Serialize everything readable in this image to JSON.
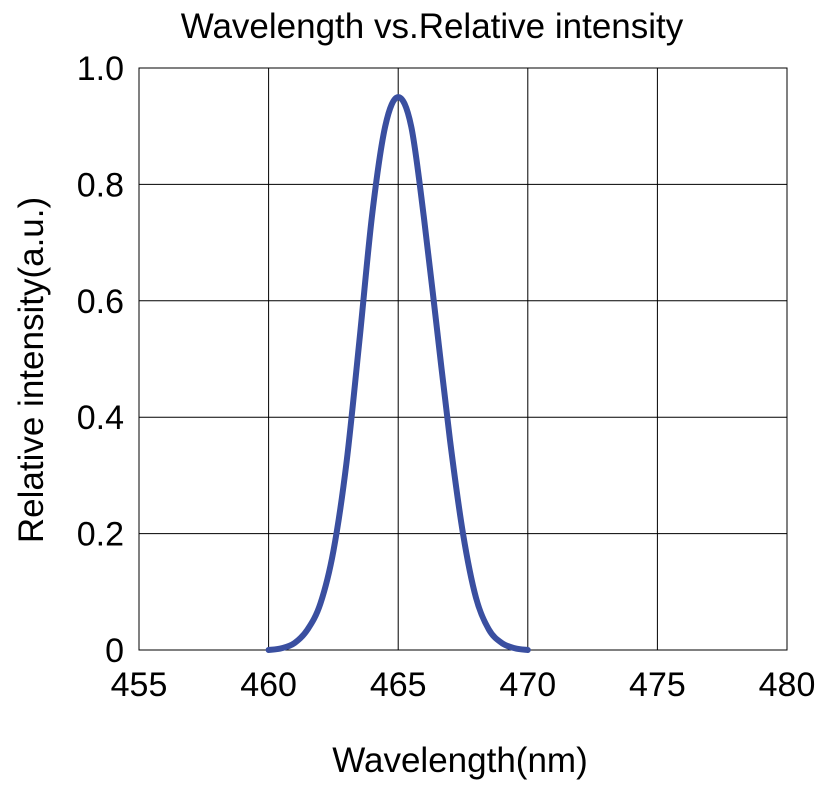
{
  "chart_data": {
    "type": "line",
    "title": "Wavelength vs.Relative intensity",
    "xlabel": "Wavelength(nm)",
    "ylabel": "Relative intensity(a.u.)",
    "xlim": [
      455,
      480
    ],
    "ylim": [
      0,
      1.0
    ],
    "x_ticks": [
      455,
      460,
      465,
      470,
      475,
      480
    ],
    "x_tick_labels": [
      "455",
      "460",
      "465",
      "470",
      "475",
      "480"
    ],
    "y_ticks": [
      0,
      0.2,
      0.4,
      0.6,
      0.8,
      1.0
    ],
    "y_tick_labels": [
      "0",
      "0.2",
      "0.4",
      "0.6",
      "0.8",
      "1.0"
    ],
    "grid": true,
    "line_color": "#3a4fa0",
    "series": [
      {
        "x": [
          460.0,
          460.5,
          461.0,
          461.5,
          462.0,
          462.5,
          463.0,
          463.5,
          464.0,
          464.5,
          465.0,
          465.5,
          466.0,
          466.5,
          467.0,
          467.5,
          468.0,
          468.5,
          469.0,
          469.5,
          470.0
        ],
        "values": [
          0.0,
          0.003,
          0.012,
          0.035,
          0.08,
          0.17,
          0.32,
          0.53,
          0.75,
          0.9,
          0.95,
          0.9,
          0.74,
          0.55,
          0.36,
          0.2,
          0.09,
          0.035,
          0.012,
          0.003,
          0.0
        ]
      }
    ]
  }
}
